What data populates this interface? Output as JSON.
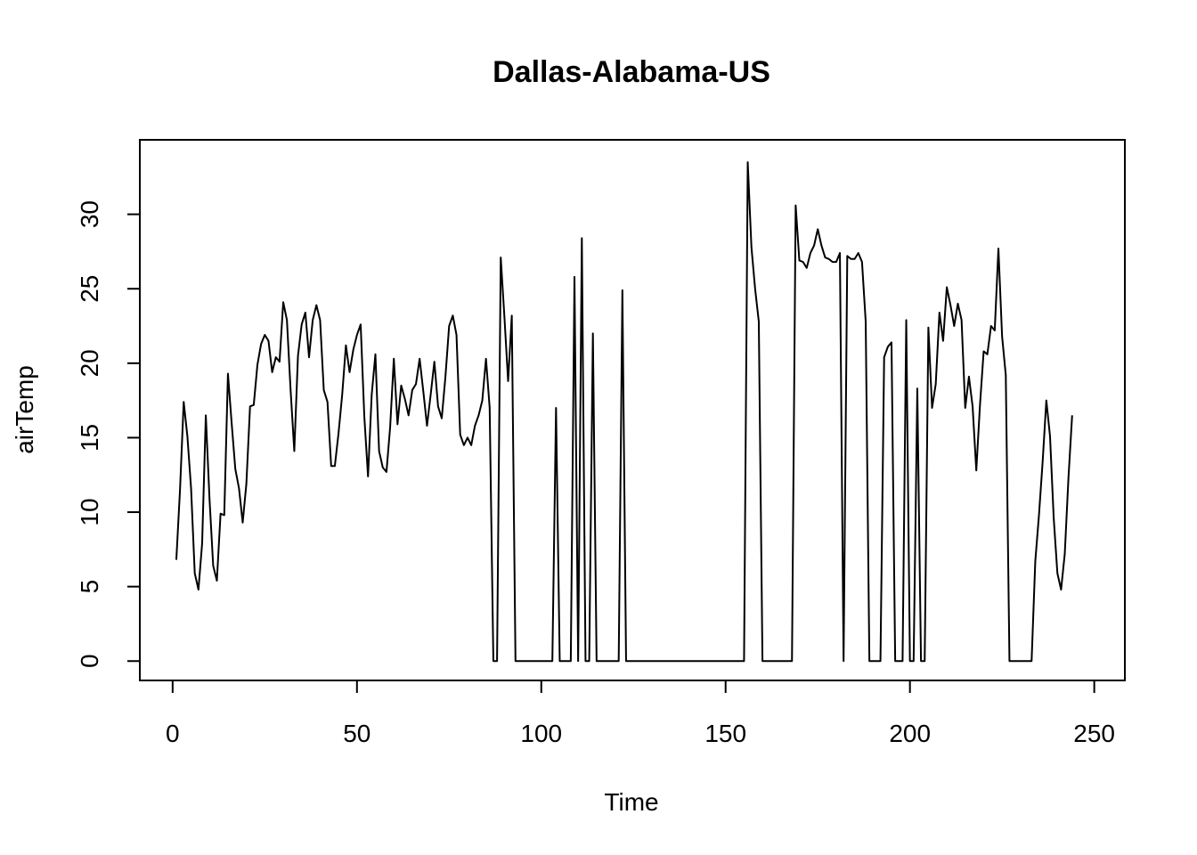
{
  "chart_data": {
    "type": "line",
    "title": "Dallas-Alabama-US",
    "xlabel": "Time",
    "ylabel": "airTemp",
    "xlim": [
      -8.9,
      258.3
    ],
    "ylim": [
      -1.3,
      35.0
    ],
    "xticks": [
      0,
      50,
      100,
      150,
      200,
      250
    ],
    "yticks": [
      0,
      5,
      10,
      15,
      20,
      25,
      30
    ],
    "grid": false,
    "color": "#000000",
    "series": [
      {
        "values": [
          6.8,
          11.5,
          17.4,
          15.1,
          11.6,
          5.9,
          4.8,
          7.9,
          16.5,
          10.9,
          6.4,
          5.4,
          9.9,
          9.8,
          19.3,
          16.0,
          12.9,
          11.6,
          9.3,
          11.9,
          17.1,
          17.2,
          19.9,
          21.3,
          21.9,
          21.5,
          19.4,
          20.4,
          20.1,
          24.1,
          22.9,
          18.2,
          14.1,
          20.5,
          22.6,
          23.4,
          20.4,
          22.9,
          23.9,
          22.9,
          18.2,
          17.4,
          13.1,
          13.1,
          15.3,
          17.9,
          21.2,
          19.4,
          20.9,
          21.9,
          22.6,
          16.4,
          12.4,
          17.9,
          20.6,
          14.1,
          13.0,
          12.7,
          15.7,
          20.3,
          15.9,
          18.5,
          17.6,
          16.5,
          18.2,
          18.6,
          20.3,
          18.1,
          15.8,
          17.9,
          20.1,
          17.1,
          16.3,
          19.1,
          22.5,
          23.2,
          21.9,
          15.2,
          14.5,
          15.0,
          14.5,
          15.8,
          16.5,
          17.5,
          20.3,
          17.0,
          0,
          0,
          27.1,
          23.1,
          18.8,
          23.2,
          0,
          0,
          0,
          0,
          0,
          0,
          0,
          0,
          0,
          0,
          0,
          17.0,
          0,
          0,
          0,
          0,
          25.8,
          0,
          28.4,
          0,
          0,
          22.0,
          0,
          0,
          0,
          0,
          0,
          0,
          0,
          24.9,
          0,
          0,
          0,
          0,
          0,
          0,
          0,
          0,
          0,
          0,
          0,
          0,
          0,
          0,
          0,
          0,
          0,
          0,
          0,
          0,
          0,
          0,
          0,
          0,
          0,
          0,
          0,
          0,
          0,
          0,
          0,
          0,
          0,
          33.5,
          27.8,
          25.0,
          22.8,
          0,
          0,
          0,
          0,
          0,
          0,
          0,
          0,
          0,
          30.6,
          26.9,
          26.8,
          26.4,
          27.4,
          27.9,
          29.0,
          27.9,
          27.1,
          27.0,
          26.8,
          26.8,
          27.4,
          0,
          27.2,
          27.0,
          27.0,
          27.4,
          26.8,
          22.8,
          0,
          0,
          0,
          0,
          20.4,
          21.1,
          21.4,
          0,
          0,
          0,
          22.9,
          0,
          0,
          18.3,
          0,
          0,
          22.4,
          17.0,
          18.6,
          23.4,
          21.5,
          25.1,
          23.9,
          22.5,
          24.0,
          22.9,
          17.0,
          19.1,
          17.1,
          12.8,
          17.2,
          20.8,
          20.6,
          22.5,
          22.2,
          27.7,
          21.8,
          19.2,
          0,
          0,
          0,
          0,
          0,
          0,
          0,
          6.7,
          9.8,
          13.4,
          17.5,
          15.1,
          9.6,
          5.9,
          4.8,
          7.2,
          12.3,
          16.5
        ]
      }
    ]
  }
}
